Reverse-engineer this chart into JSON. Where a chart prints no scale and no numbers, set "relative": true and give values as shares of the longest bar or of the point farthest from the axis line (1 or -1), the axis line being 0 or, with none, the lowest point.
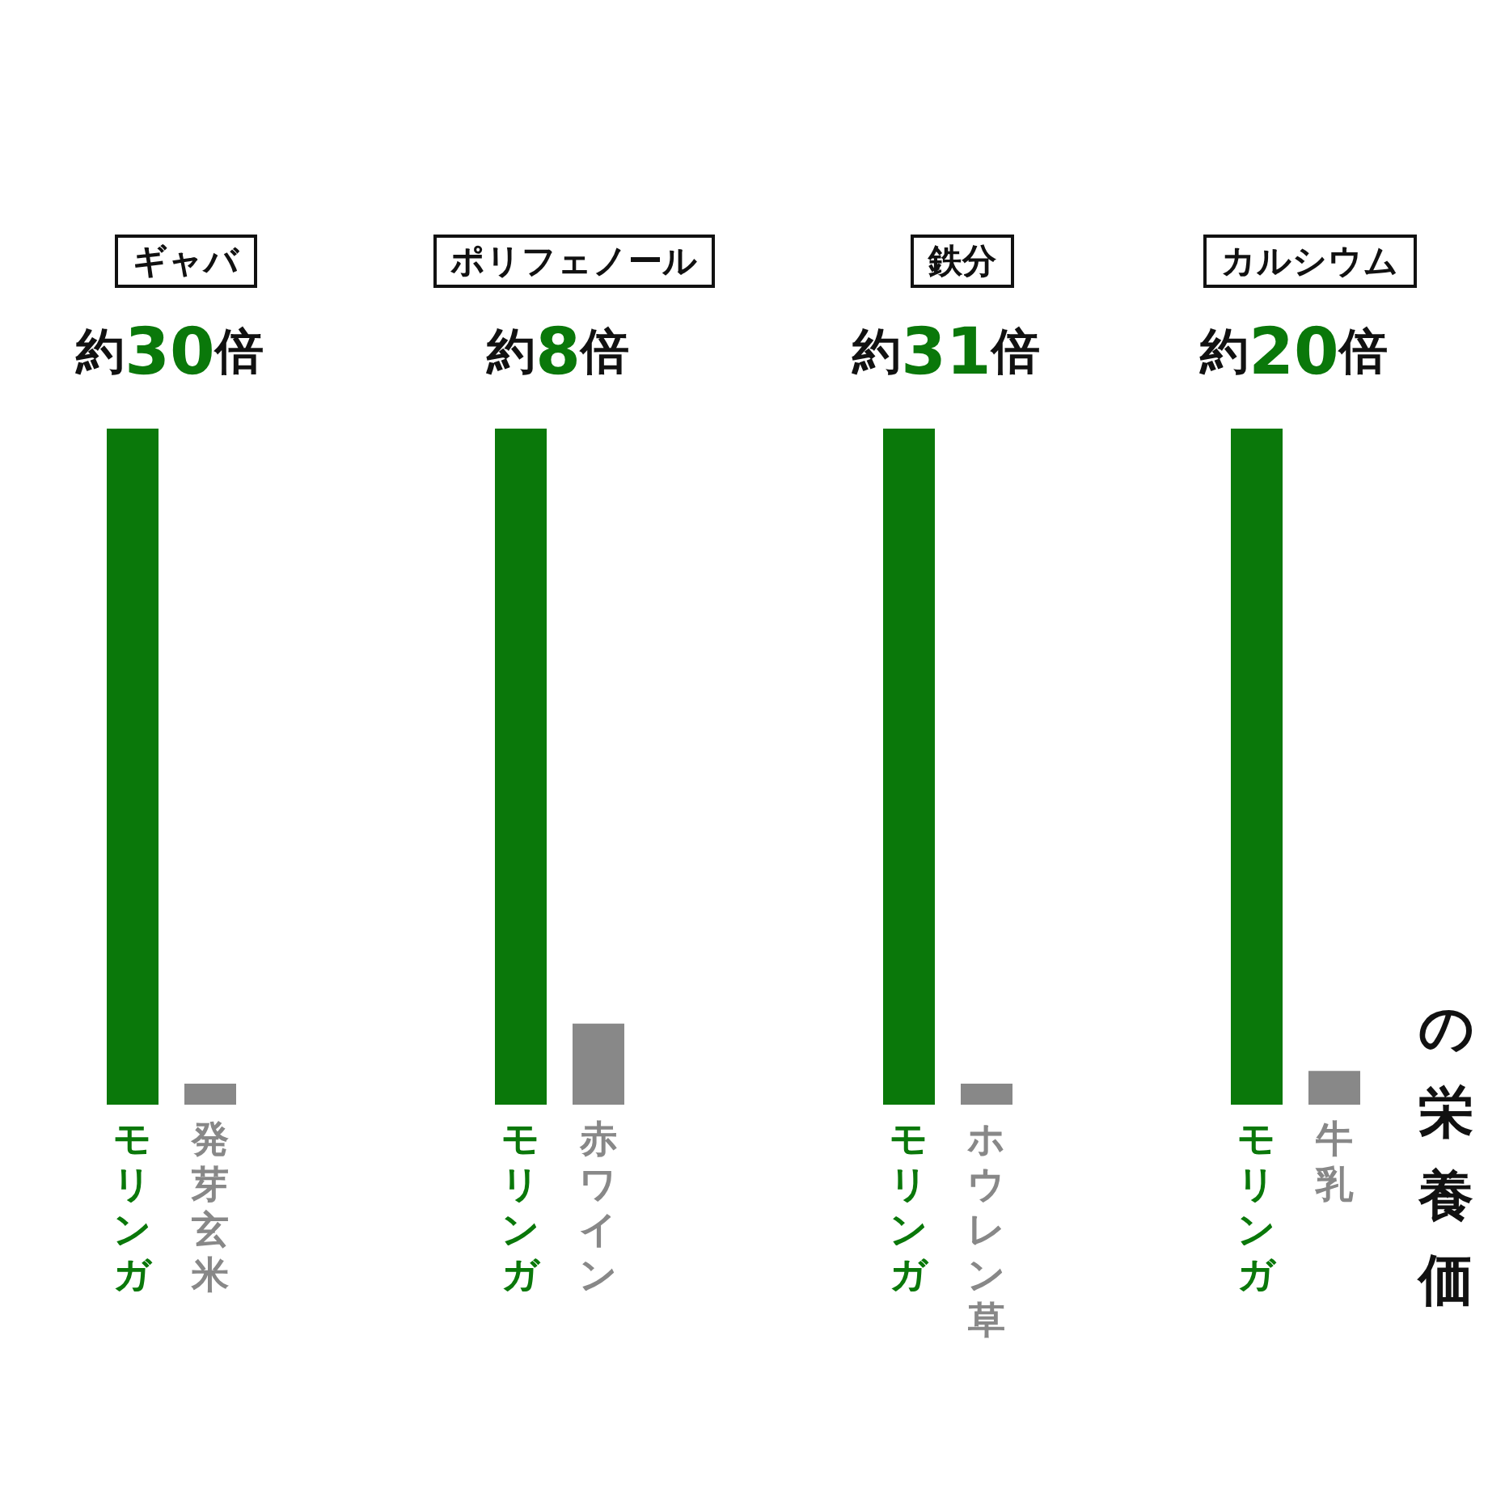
{
  "chart_data": [
    {
      "type": "bar",
      "title": "ギャバ",
      "annotations": [
        "約30倍"
      ],
      "categories": [
        "モリンガ",
        "発芽玄米"
      ],
      "values": [
        1,
        0.031
      ],
      "colors": [
        "#0a780a",
        "#888888"
      ],
      "relative": true
    },
    {
      "type": "bar",
      "title": "ポリフェノール",
      "annotations": [
        "約8倍"
      ],
      "categories": [
        "モリンガ",
        "赤ワイン"
      ],
      "values": [
        1,
        0.12
      ],
      "colors": [
        "#0a780a",
        "#888888"
      ],
      "relative": true
    },
    {
      "type": "bar",
      "title": "鉄分",
      "annotations": [
        "約31倍"
      ],
      "categories": [
        "モリンガ",
        "ホウレン草"
      ],
      "values": [
        1,
        0.031
      ],
      "colors": [
        "#0a780a",
        "#888888"
      ],
      "relative": true
    },
    {
      "type": "bar",
      "title": "カルシウム",
      "annotations": [
        "約20倍",
        "の栄養価"
      ],
      "categories": [
        "モリンガ",
        "牛乳"
      ],
      "values": [
        1,
        0.05
      ],
      "colors": [
        "#0a780a",
        "#888888"
      ],
      "relative": true
    }
  ]
}
